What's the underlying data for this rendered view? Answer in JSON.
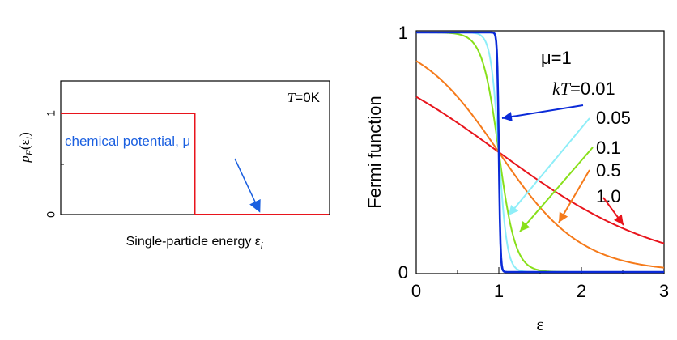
{
  "chart_data": [
    {
      "type": "line",
      "title": "",
      "annotation_temperature": {
        "T": "T",
        "value": "=0K"
      },
      "ylabel": {
        "base": "p",
        "sub": "F",
        "arg_open": "(ε",
        "arg_sub": "i",
        "arg_close": ")"
      },
      "xlabel": {
        "text": "Single-particle energy ε",
        "sub": "i"
      },
      "ytick_labels": [
        "0",
        "1"
      ],
      "xlim": [
        0,
        2
      ],
      "ylim": [
        0,
        1
      ],
      "grid": false,
      "series": [
        {
          "x": [
            0,
            1,
            1,
            2
          ],
          "y": [
            1,
            1,
            0,
            0
          ]
        }
      ],
      "arrow_annotation": "chemical potential, μ",
      "colors": {
        "curve": "#e8141c",
        "annotation": "#1a5fe0",
        "frame": "#000000"
      }
    },
    {
      "type": "line",
      "title": "",
      "xlabel": "ε",
      "ylabel": "Fermi function",
      "xlim": [
        0,
        3
      ],
      "ylim": [
        0,
        1
      ],
      "xticks": [
        "0",
        "1",
        "2",
        "3"
      ],
      "yticks": [
        "0",
        "1"
      ],
      "grid": false,
      "mu_label": "μ=1",
      "kt_label": {
        "italic": "kT",
        "rest": "=0.01"
      },
      "series": [
        {
          "kT": 0.01,
          "label": "0.01",
          "color": "#0a2ad8"
        },
        {
          "kT": 0.05,
          "label": "0.05",
          "color": "#8eeef8"
        },
        {
          "kT": 0.1,
          "label": "0.1",
          "color": "#88e01a"
        },
        {
          "kT": 0.5,
          "label": "0.5",
          "color": "#f57a1a"
        },
        {
          "kT": 1.0,
          "label": "1.0",
          "color": "#e8141c"
        }
      ],
      "mu": 1
    }
  ]
}
